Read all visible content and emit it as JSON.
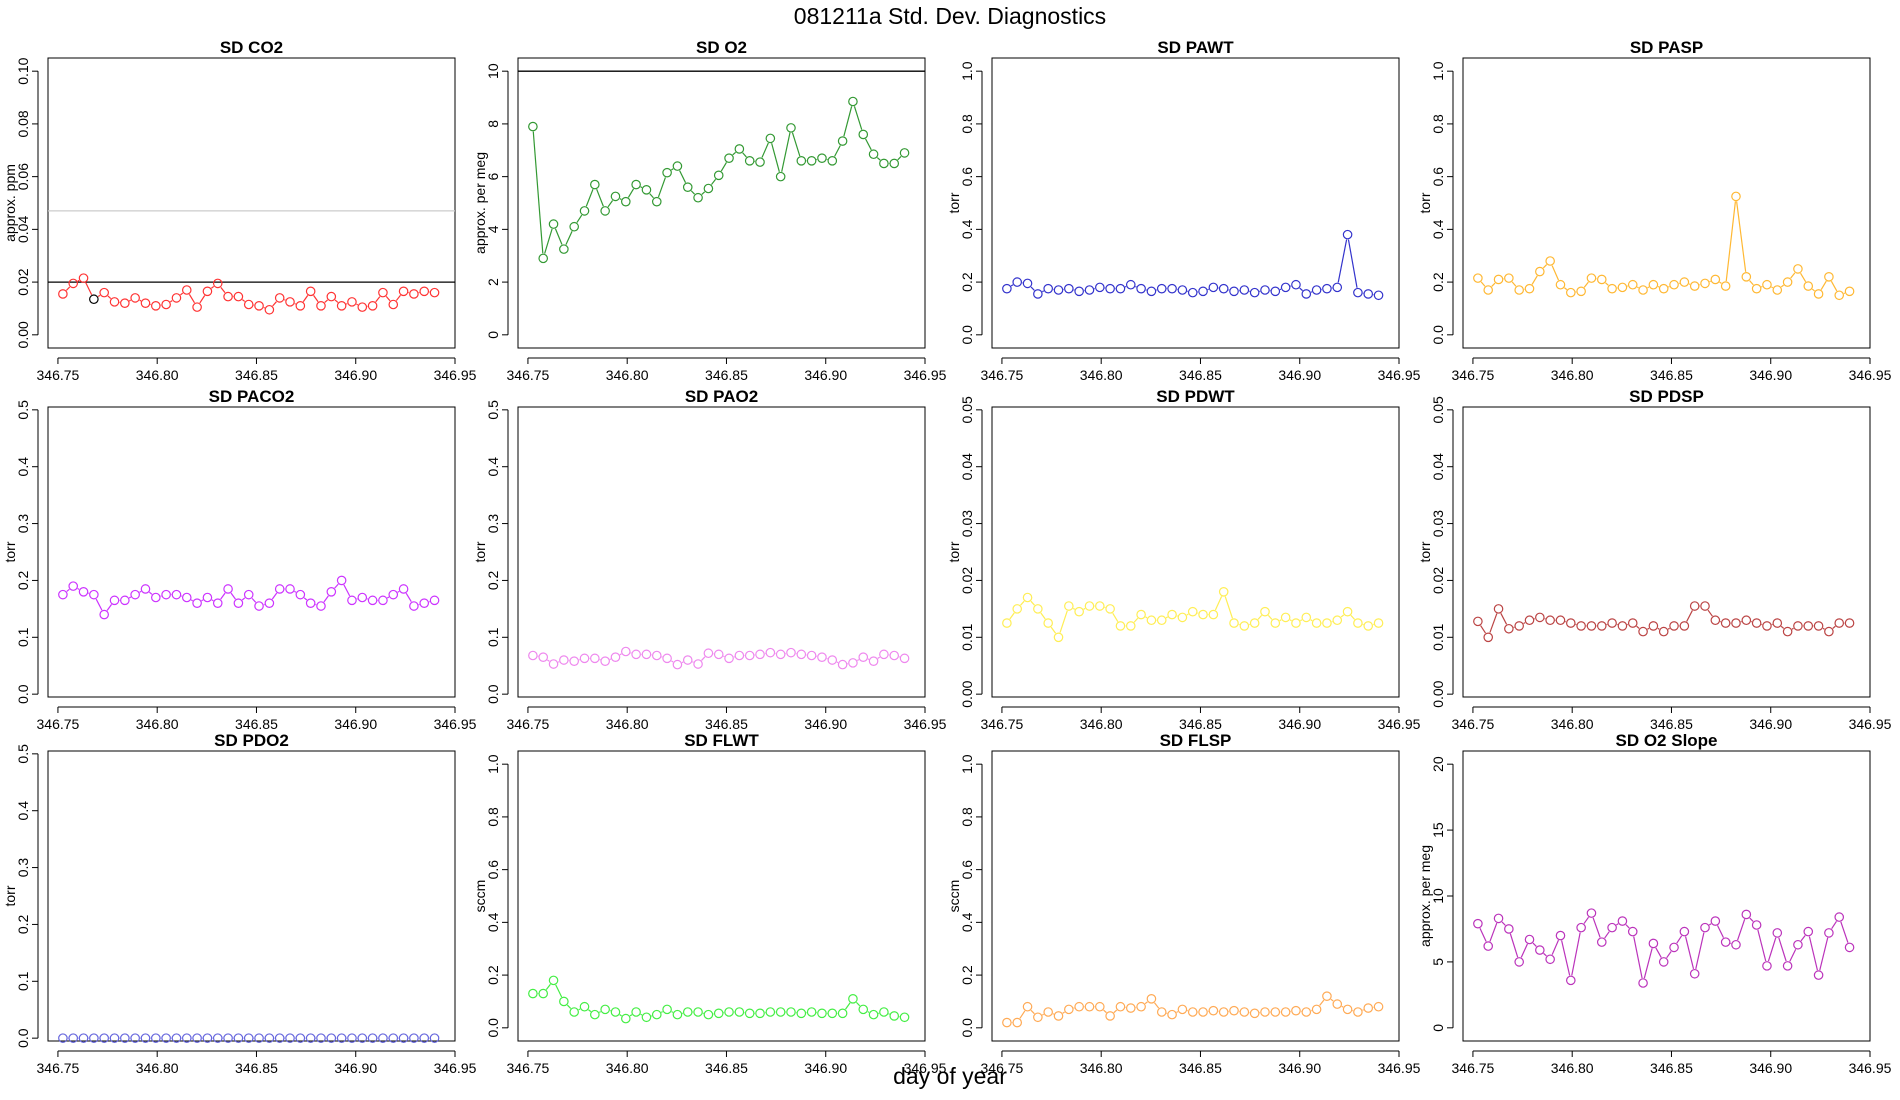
{
  "figure": {
    "title": "081211a   Std. Dev. Diagnostics",
    "xcaption": "day of year"
  },
  "chart_data": [
    {
      "type": "line",
      "title": "SD CO2",
      "ylabel": "approx. ppm",
      "color": "#ff3333",
      "xlim": [
        346.745,
        346.95
      ],
      "ylim": [
        -0.005,
        0.105
      ],
      "xticks": [
        "346.75",
        "346.80",
        "346.85",
        "346.90",
        "346.95"
      ],
      "yticks": [
        "0.00",
        "0.02",
        "0.04",
        "0.06",
        "0.08",
        "0.10"
      ],
      "hlines": [
        {
          "y": 0.02,
          "color": "#000000"
        },
        {
          "y": 0.047,
          "color": "#cccccc"
        }
      ],
      "highlight": {
        "index": 3,
        "color": "#000000"
      },
      "values": [
        0.0155,
        0.0195,
        0.0215,
        0.0135,
        0.016,
        0.0125,
        0.012,
        0.014,
        0.012,
        0.011,
        0.0115,
        0.014,
        0.017,
        0.0105,
        0.0165,
        0.0195,
        0.0145,
        0.0145,
        0.0115,
        0.011,
        0.0095,
        0.014,
        0.0125,
        0.011,
        0.0165,
        0.011,
        0.0145,
        0.011,
        0.0125,
        0.0105,
        0.011,
        0.016,
        0.0115,
        0.0165,
        0.0155,
        0.0165,
        0.016
      ]
    },
    {
      "type": "line",
      "title": "SD O2",
      "ylabel": "approx. per meg",
      "color": "#339933",
      "xlim": [
        346.745,
        346.95
      ],
      "ylim": [
        -0.5,
        10.5
      ],
      "xticks": [
        "346.75",
        "346.80",
        "346.85",
        "346.90",
        "346.95"
      ],
      "yticks": [
        "0",
        "2",
        "4",
        "6",
        "8",
        "10"
      ],
      "hlines": [
        {
          "y": 10,
          "color": "#000000"
        }
      ],
      "values": [
        7.9,
        2.9,
        4.2,
        3.25,
        4.1,
        4.7,
        5.7,
        4.7,
        5.25,
        5.05,
        5.7,
        5.5,
        5.05,
        6.15,
        6.4,
        5.6,
        5.2,
        5.55,
        6.05,
        6.7,
        7.05,
        6.6,
        6.55,
        7.45,
        6.0,
        7.85,
        6.6,
        6.6,
        6.7,
        6.6,
        7.35,
        8.85,
        7.6,
        6.85,
        6.5,
        6.5,
        6.9
      ]
    },
    {
      "type": "line",
      "title": "SD PAWT",
      "ylabel": "torr",
      "color": "#3333cc",
      "xlim": [
        346.745,
        346.95
      ],
      "ylim": [
        -0.05,
        1.05
      ],
      "xticks": [
        "346.75",
        "346.80",
        "346.85",
        "346.90",
        "346.95"
      ],
      "yticks": [
        "0.0",
        "0.2",
        "0.4",
        "0.6",
        "0.8",
        "1.0"
      ],
      "values": [
        0.175,
        0.2,
        0.195,
        0.155,
        0.175,
        0.17,
        0.175,
        0.165,
        0.17,
        0.18,
        0.175,
        0.175,
        0.19,
        0.175,
        0.165,
        0.175,
        0.175,
        0.17,
        0.16,
        0.165,
        0.18,
        0.175,
        0.165,
        0.17,
        0.16,
        0.17,
        0.165,
        0.18,
        0.19,
        0.155,
        0.17,
        0.175,
        0.18,
        0.38,
        0.16,
        0.155,
        0.15
      ]
    },
    {
      "type": "line",
      "title": "SD PASP",
      "ylabel": "torr",
      "color": "#ffb833",
      "xlim": [
        346.745,
        346.95
      ],
      "ylim": [
        -0.05,
        1.05
      ],
      "xticks": [
        "346.75",
        "346.80",
        "346.85",
        "346.90",
        "346.95"
      ],
      "yticks": [
        "0.0",
        "0.2",
        "0.4",
        "0.6",
        "0.8",
        "1.0"
      ],
      "values": [
        0.215,
        0.17,
        0.21,
        0.215,
        0.17,
        0.175,
        0.24,
        0.28,
        0.19,
        0.16,
        0.165,
        0.215,
        0.21,
        0.175,
        0.18,
        0.19,
        0.17,
        0.19,
        0.175,
        0.19,
        0.2,
        0.185,
        0.195,
        0.21,
        0.185,
        0.525,
        0.22,
        0.175,
        0.19,
        0.17,
        0.2,
        0.25,
        0.185,
        0.155,
        0.22,
        0.15,
        0.165
      ]
    },
    {
      "type": "line",
      "title": "SD PACO2",
      "ylabel": "torr",
      "color": "#cc33ff",
      "xlim": [
        346.745,
        346.95
      ],
      "ylim": [
        -0.005,
        0.505
      ],
      "xticks": [
        "346.75",
        "346.80",
        "346.85",
        "346.90",
        "346.95"
      ],
      "yticks": [
        "0.0",
        "0.1",
        "0.2",
        "0.3",
        "0.4",
        "0.5"
      ],
      "values": [
        0.175,
        0.19,
        0.18,
        0.175,
        0.14,
        0.165,
        0.165,
        0.175,
        0.185,
        0.17,
        0.175,
        0.175,
        0.17,
        0.16,
        0.17,
        0.16,
        0.185,
        0.16,
        0.175,
        0.155,
        0.16,
        0.185,
        0.185,
        0.175,
        0.16,
        0.155,
        0.18,
        0.2,
        0.165,
        0.17,
        0.165,
        0.165,
        0.175,
        0.185,
        0.155,
        0.16,
        0.165
      ]
    },
    {
      "type": "line",
      "title": "SD PAO2",
      "ylabel": "torr",
      "color": "#ee88ee",
      "xlim": [
        346.745,
        346.95
      ],
      "ylim": [
        -0.005,
        0.505
      ],
      "xticks": [
        "346.75",
        "346.80",
        "346.85",
        "346.90",
        "346.95"
      ],
      "yticks": [
        "0.0",
        "0.1",
        "0.2",
        "0.3",
        "0.4",
        "0.5"
      ],
      "values": [
        0.068,
        0.065,
        0.053,
        0.06,
        0.058,
        0.063,
        0.063,
        0.058,
        0.065,
        0.075,
        0.07,
        0.07,
        0.068,
        0.063,
        0.052,
        0.06,
        0.053,
        0.072,
        0.07,
        0.063,
        0.068,
        0.068,
        0.07,
        0.073,
        0.07,
        0.073,
        0.07,
        0.068,
        0.065,
        0.06,
        0.052,
        0.055,
        0.065,
        0.058,
        0.07,
        0.068,
        0.063
      ]
    },
    {
      "type": "line",
      "title": "SD PDWT",
      "ylabel": "torr",
      "color": "#ffee55",
      "xlim": [
        346.745,
        346.95
      ],
      "ylim": [
        -0.0005,
        0.0505
      ],
      "xticks": [
        "346.75",
        "346.80",
        "346.85",
        "346.90",
        "346.95"
      ],
      "yticks": [
        "0.00",
        "0.01",
        "0.02",
        "0.03",
        "0.04",
        "0.05"
      ],
      "values": [
        0.0125,
        0.015,
        0.017,
        0.015,
        0.0125,
        0.01,
        0.0155,
        0.0145,
        0.0155,
        0.0155,
        0.015,
        0.012,
        0.012,
        0.014,
        0.013,
        0.013,
        0.014,
        0.0135,
        0.0145,
        0.014,
        0.014,
        0.018,
        0.0125,
        0.012,
        0.0125,
        0.0145,
        0.0125,
        0.0135,
        0.0125,
        0.0135,
        0.0125,
        0.0125,
        0.013,
        0.0145,
        0.0125,
        0.012,
        0.0125
      ]
    },
    {
      "type": "line",
      "title": "SD PDSP",
      "ylabel": "torr",
      "color": "#bb4444",
      "xlim": [
        346.745,
        346.95
      ],
      "ylim": [
        -0.0005,
        0.0505
      ],
      "xticks": [
        "346.75",
        "346.80",
        "346.85",
        "346.90",
        "346.95"
      ],
      "yticks": [
        "0.00",
        "0.01",
        "0.02",
        "0.03",
        "0.04",
        "0.05"
      ],
      "values": [
        0.0128,
        0.01,
        0.015,
        0.0115,
        0.012,
        0.013,
        0.0135,
        0.013,
        0.013,
        0.0125,
        0.012,
        0.012,
        0.012,
        0.0125,
        0.012,
        0.0125,
        0.011,
        0.012,
        0.011,
        0.012,
        0.012,
        0.0155,
        0.0155,
        0.013,
        0.0125,
        0.0125,
        0.013,
        0.0125,
        0.012,
        0.0125,
        0.011,
        0.012,
        0.012,
        0.012,
        0.011,
        0.0125,
        0.0125
      ]
    },
    {
      "type": "line",
      "title": "SD PDO2",
      "ylabel": "torr",
      "color": "#6666dd",
      "xlim": [
        346.745,
        346.95
      ],
      "ylim": [
        -0.005,
        0.505
      ],
      "xticks": [
        "346.75",
        "346.80",
        "346.85",
        "346.90",
        "346.95"
      ],
      "yticks": [
        "0.0",
        "0.1",
        "0.2",
        "0.3",
        "0.4",
        "0.5"
      ],
      "values": [
        0,
        0,
        0,
        0,
        0,
        0,
        0,
        0,
        0,
        0,
        0,
        0,
        0,
        0,
        0,
        0,
        0,
        0,
        0,
        0,
        0,
        0,
        0,
        0,
        0,
        0,
        0,
        0,
        0,
        0,
        0,
        0,
        0,
        0,
        0,
        0,
        0
      ]
    },
    {
      "type": "line",
      "title": "SD FLWT",
      "ylabel": "sccm",
      "color": "#44ee44",
      "xlim": [
        346.745,
        346.95
      ],
      "ylim": [
        -0.05,
        1.05
      ],
      "xticks": [
        "346.75",
        "346.80",
        "346.85",
        "346.90",
        "346.95"
      ],
      "yticks": [
        "0.0",
        "0.2",
        "0.4",
        "0.6",
        "0.8",
        "1.0"
      ],
      "values": [
        0.13,
        0.13,
        0.18,
        0.1,
        0.06,
        0.08,
        0.05,
        0.07,
        0.06,
        0.035,
        0.06,
        0.04,
        0.05,
        0.07,
        0.05,
        0.06,
        0.06,
        0.05,
        0.055,
        0.06,
        0.06,
        0.055,
        0.055,
        0.06,
        0.06,
        0.06,
        0.055,
        0.06,
        0.055,
        0.055,
        0.055,
        0.11,
        0.07,
        0.05,
        0.06,
        0.045,
        0.04
      ]
    },
    {
      "type": "line",
      "title": "SD FLSP",
      "ylabel": "sccm",
      "color": "#ffaa55",
      "xlim": [
        346.745,
        346.95
      ],
      "ylim": [
        -0.05,
        1.05
      ],
      "xticks": [
        "346.75",
        "346.80",
        "346.85",
        "346.90",
        "346.95"
      ],
      "yticks": [
        "0.0",
        "0.2",
        "0.4",
        "0.6",
        "0.8",
        "1.0"
      ],
      "values": [
        0.02,
        0.02,
        0.08,
        0.04,
        0.06,
        0.045,
        0.07,
        0.08,
        0.08,
        0.08,
        0.045,
        0.08,
        0.075,
        0.08,
        0.11,
        0.06,
        0.05,
        0.07,
        0.06,
        0.06,
        0.065,
        0.06,
        0.065,
        0.06,
        0.055,
        0.06,
        0.06,
        0.06,
        0.065,
        0.06,
        0.07,
        0.12,
        0.09,
        0.07,
        0.06,
        0.075,
        0.08
      ]
    },
    {
      "type": "line",
      "title": "SD O2 Slope",
      "ylabel": "approx. per meg",
      "color": "#bb33bb",
      "xlim": [
        346.745,
        346.95
      ],
      "ylim": [
        -1,
        21
      ],
      "xticks": [
        "346.75",
        "346.80",
        "346.85",
        "346.90",
        "346.95"
      ],
      "yticks": [
        "0",
        "5",
        "10",
        "15",
        "20"
      ],
      "values": [
        7.9,
        6.2,
        8.3,
        7.5,
        5.0,
        6.7,
        5.9,
        5.2,
        7.0,
        3.6,
        7.6,
        8.7,
        6.5,
        7.6,
        8.1,
        7.3,
        3.4,
        6.4,
        5.0,
        6.1,
        7.3,
        4.1,
        7.6,
        8.1,
        6.5,
        6.3,
        8.6,
        7.8,
        4.7,
        7.2,
        4.7,
        6.3,
        7.3,
        4.0,
        7.2,
        8.4,
        6.1
      ]
    }
  ]
}
